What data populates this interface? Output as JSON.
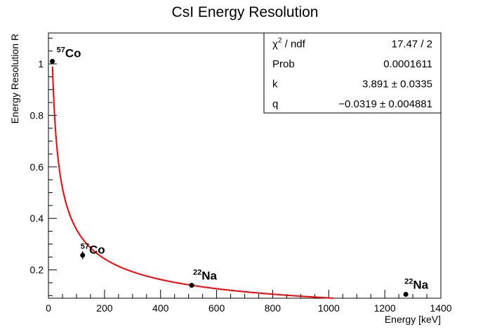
{
  "chart_data": {
    "type": "scatter",
    "title": "CsI Energy Resolution",
    "xlabel": "Energy [keV]",
    "ylabel": "Energy Resolution R",
    "xlim": [
      0,
      1400
    ],
    "ylim": [
      0.09,
      1.12
    ],
    "xticks": [
      "0",
      "200",
      "400",
      "600",
      "800",
      "1000",
      "1200",
      "1400"
    ],
    "yticks": [
      "0.2",
      "0.4",
      "0.6",
      "0.8",
      "1"
    ],
    "grid": false,
    "legend": "none",
    "series": [
      {
        "marker_color": "#000000",
        "points": [
          {
            "x": 14,
            "y": 1.01,
            "yerr": 0.005,
            "label_sup": "57",
            "label_base": "Co"
          },
          {
            "x": 122,
            "y": 0.257,
            "yerr": 0.015,
            "label_sup": "57",
            "label_base": "Co"
          },
          {
            "x": 511,
            "y": 0.14,
            "yerr": 0.004,
            "label_sup": "22",
            "label_base": "Na"
          },
          {
            "x": 1275,
            "y": 0.105,
            "yerr": 0.008,
            "label_sup": "22",
            "label_base": "Na"
          }
        ]
      }
    ],
    "fit": {
      "color": "#ff0000",
      "k": 3.891,
      "q": -0.0319,
      "x_range": [
        14.5,
        1150
      ]
    },
    "stats_box": {
      "rows": [
        {
          "label_main": "χ",
          "label_sup": "2",
          "label_rest": " / ndf",
          "value": "17.47 / 2"
        },
        {
          "label_main": "Prob",
          "label_sup": "",
          "label_rest": "",
          "value": "0.0001611"
        },
        {
          "label_main": "k",
          "label_sup": "",
          "label_rest": "",
          "value": "3.891 ± 0.0335"
        },
        {
          "label_main": "q",
          "label_sup": "",
          "label_rest": "",
          "value": "−0.0319 ± 0.004881"
        }
      ]
    }
  }
}
